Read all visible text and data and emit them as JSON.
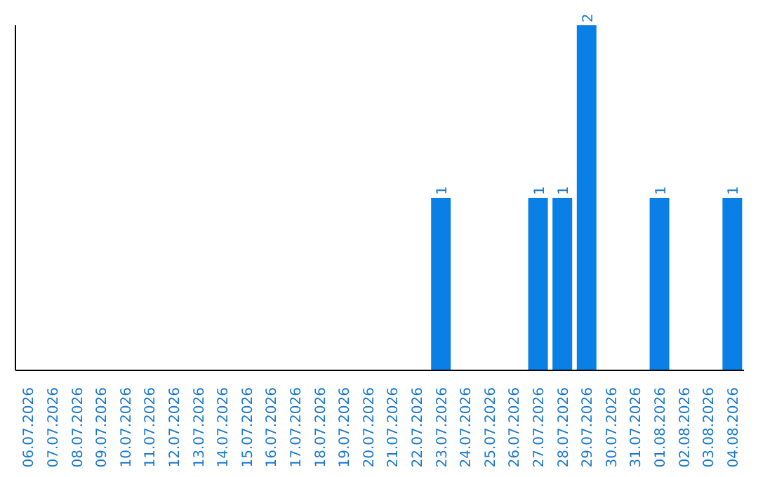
{
  "chart_data": {
    "type": "bar",
    "categories": [
      "06.07.2026",
      "07.07.2026",
      "08.07.2026",
      "09.07.2026",
      "10.07.2026",
      "11.07.2026",
      "12.07.2026",
      "13.07.2026",
      "14.07.2026",
      "15.07.2026",
      "16.07.2026",
      "17.07.2026",
      "18.07.2026",
      "19.07.2026",
      "20.07.2026",
      "21.07.2026",
      "22.07.2026",
      "23.07.2026",
      "24.07.2026",
      "25.07.2026",
      "26.07.2026",
      "27.07.2026",
      "28.07.2026",
      "29.07.2026",
      "30.07.2026",
      "31.07.2026",
      "01.08.2026",
      "02.08.2026",
      "03.08.2026",
      "04.08.2026"
    ],
    "values": [
      null,
      null,
      null,
      null,
      null,
      null,
      null,
      null,
      null,
      null,
      null,
      null,
      null,
      null,
      null,
      null,
      null,
      1,
      null,
      null,
      null,
      1,
      1,
      2,
      null,
      null,
      1,
      null,
      null,
      1
    ],
    "color": "#0a7fe6",
    "data_labels": true,
    "tick_labels": "x"
  }
}
